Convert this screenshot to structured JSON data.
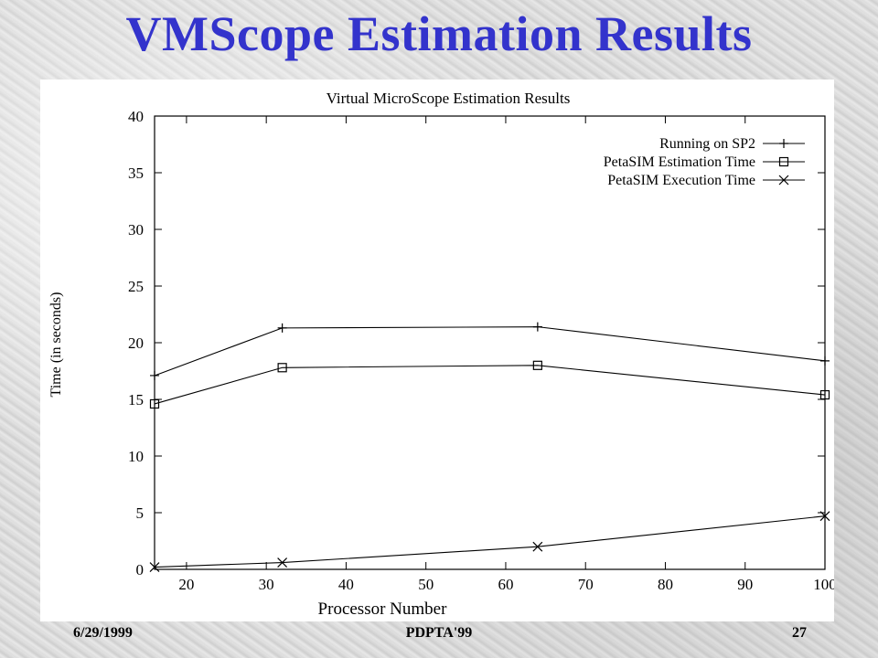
{
  "slide": {
    "title": "VMScope Estimation Results",
    "footer_date": "6/29/1999",
    "footer_conference": "PDPTA'99",
    "footer_page": "27"
  },
  "chart_data": {
    "type": "line",
    "title": "Virtual MicroScope Estimation Results",
    "xlabel": "Processor Number",
    "ylabel": "Time (in seconds)",
    "xlim": [
      16,
      100
    ],
    "ylim": [
      0,
      40
    ],
    "xticks": [
      20,
      30,
      40,
      50,
      60,
      70,
      80,
      90,
      100
    ],
    "yticks": [
      0,
      5,
      10,
      15,
      20,
      25,
      30,
      35,
      40
    ],
    "grid": false,
    "legend_position": "top-right",
    "x": [
      16,
      32,
      64,
      100
    ],
    "series": [
      {
        "name": "Running on SP2",
        "marker": "plus",
        "values": [
          17.1,
          21.3,
          21.4,
          18.4
        ]
      },
      {
        "name": "PetaSIM Estimation Time",
        "marker": "square",
        "values": [
          14.6,
          17.8,
          18.0,
          15.4
        ]
      },
      {
        "name": "PetaSIM Execution Time",
        "marker": "cross",
        "values": [
          0.2,
          0.6,
          2.0,
          4.7
        ]
      }
    ]
  }
}
